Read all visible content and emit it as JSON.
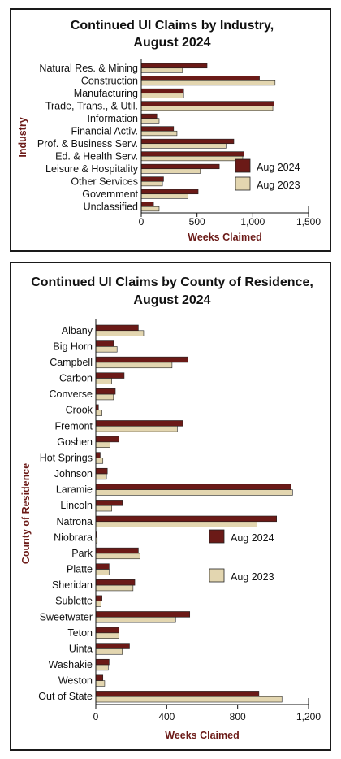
{
  "colors": {
    "aug_2024": "#6b1a17",
    "aug_2023": "#e3d6b0",
    "outline": "#222222",
    "axis_label": "#6b1a17"
  },
  "chart_data": [
    {
      "type": "bar",
      "orientation": "horizontal",
      "title_lines": [
        "Continued UI Claims by Industry,",
        "August 2024"
      ],
      "xlabel": "Weeks Claimed",
      "ylabel": "Industry",
      "xlim": [
        0,
        1500
      ],
      "xticks": [
        0,
        500,
        1000,
        1500
      ],
      "xtick_labels": [
        "0",
        "500",
        "1,000",
        "1,500"
      ],
      "legend_position": "bottom-right",
      "categories": [
        "Natural Res. & Mining",
        "Construction",
        "Manufacturing",
        "Trade, Trans., & Util.",
        "Information",
        "Financial Activ.",
        "Prof. & Business Serv.",
        "Ed. & Health Serv.",
        "Leisure & Hospitality",
        "Other Services",
        "Government",
        "Unclassified"
      ],
      "series": [
        {
          "name": "Aug 2024",
          "values": [
            590,
            1060,
            380,
            1190,
            140,
            290,
            830,
            920,
            700,
            200,
            510,
            110
          ]
        },
        {
          "name": "Aug 2023",
          "values": [
            370,
            1200,
            380,
            1180,
            160,
            320,
            760,
            910,
            530,
            190,
            420,
            160
          ]
        }
      ]
    },
    {
      "type": "bar",
      "orientation": "horizontal",
      "title_lines": [
        "Continued UI Claims by County of Residence,",
        "August 2024"
      ],
      "xlabel": "Weeks Claimed",
      "ylabel": "County of Residence",
      "xlim": [
        0,
        1200
      ],
      "xticks": [
        0,
        400,
        800,
        1200
      ],
      "xtick_labels": [
        "0",
        "400",
        "800",
        "1,200"
      ],
      "legend_position": "middle-right",
      "categories": [
        "Albany",
        "Big Horn",
        "Campbell",
        "Carbon",
        "Converse",
        "Crook",
        "Fremont",
        "Goshen",
        "Hot Springs",
        "Johnson",
        "Laramie",
        "Lincoln",
        "Natrona",
        "Niobrara",
        "Park",
        "Platte",
        "Sheridan",
        "Sublette",
        "Sweetwater",
        "Teton",
        "Uinta",
        "Washakie",
        "Weston",
        "Out of State"
      ],
      "series": [
        {
          "name": "Aug 2024",
          "values": [
            240,
            100,
            520,
            160,
            110,
            15,
            490,
            130,
            25,
            65,
            1100,
            150,
            1020,
            5,
            240,
            75,
            220,
            35,
            530,
            130,
            190,
            75,
            40,
            920
          ]
        },
        {
          "name": "Aug 2023",
          "values": [
            270,
            120,
            430,
            90,
            100,
            35,
            460,
            80,
            40,
            60,
            1110,
            90,
            910,
            8,
            250,
            75,
            210,
            30,
            450,
            130,
            150,
            70,
            50,
            1050
          ]
        }
      ]
    }
  ]
}
